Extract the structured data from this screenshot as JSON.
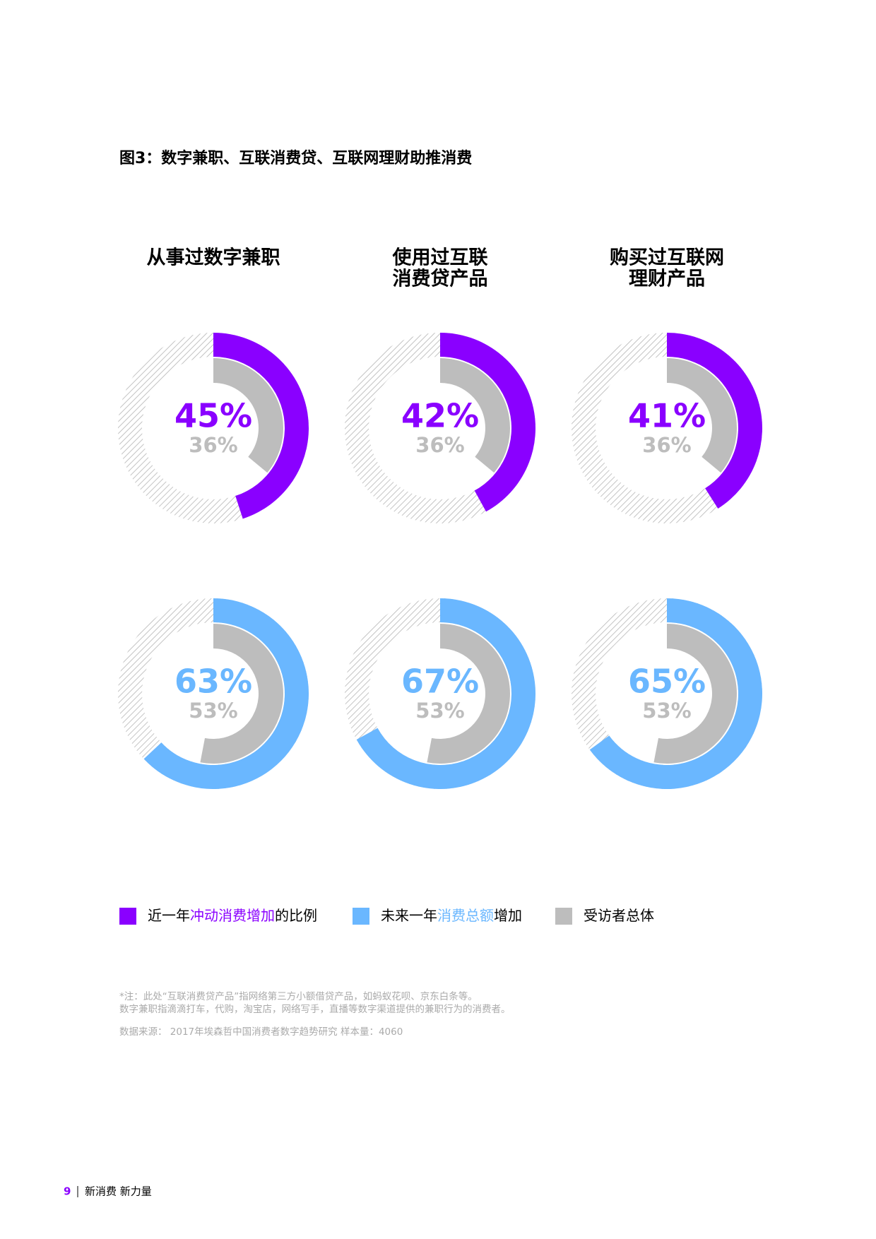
{
  "figure_title": "图3：数字兼职、互联消费贷、互联网理财助推消费",
  "chart_data": [
    {
      "type": "donut",
      "title": [
        "从事过数字兼职"
      ],
      "values": [
        45,
        36
      ],
      "value_labels": [
        "45%",
        "36%"
      ],
      "colors": [
        "#8a00ff",
        "#bdbdbd"
      ]
    },
    {
      "type": "donut",
      "title": [
        "使用过互联",
        "消费贷产品"
      ],
      "values": [
        42,
        36
      ],
      "value_labels": [
        "42%",
        "36%"
      ],
      "colors": [
        "#8a00ff",
        "#bdbdbd"
      ]
    },
    {
      "type": "donut",
      "title": [
        "购买过互联网",
        "理财产品"
      ],
      "values": [
        41,
        36
      ],
      "value_labels": [
        "41%",
        "36%"
      ],
      "colors": [
        "#8a00ff",
        "#bdbdbd"
      ]
    },
    {
      "type": "donut",
      "values": [
        63,
        53
      ],
      "value_labels": [
        "63%",
        "53%"
      ],
      "colors": [
        "#6ab7ff",
        "#bdbdbd"
      ]
    },
    {
      "type": "donut",
      "values": [
        67,
        53
      ],
      "value_labels": [
        "67%",
        "53%"
      ],
      "colors": [
        "#6ab7ff",
        "#bdbdbd"
      ]
    },
    {
      "type": "donut",
      "values": [
        65,
        53
      ],
      "value_labels": [
        "65%",
        "53%"
      ],
      "colors": [
        "#6ab7ff",
        "#bdbdbd"
      ]
    }
  ],
  "legend": [
    {
      "color": "#8a00ff",
      "parts": [
        {
          "text": "近一年"
        },
        {
          "text": "冲动消费增加",
          "color": "#8a00ff"
        },
        {
          "text": "的比例"
        }
      ]
    },
    {
      "color": "#6ab7ff",
      "parts": [
        {
          "text": "未来一年"
        },
        {
          "text": "消费总额",
          "color": "#6ab7ff"
        },
        {
          "text": "增加"
        }
      ]
    },
    {
      "color": "#bdbdbd",
      "parts": [
        {
          "text": "受访者总体"
        }
      ]
    }
  ],
  "notes": [
    "*注：此处“互联消费贷产品”指网络第三方小额借贷产品，如蚂蚁花呗、京东白条等。",
    "数字兼职指滴滴打车，代购，淘宝店，网络写手，直播等数字渠道提供的兼职行为的消费者。"
  ],
  "source": "数据来源： 2017年埃森哲中国消费者数字趋势研究 样本量：4060",
  "footer": {
    "page": "9",
    "text": "新消费 新力量"
  }
}
